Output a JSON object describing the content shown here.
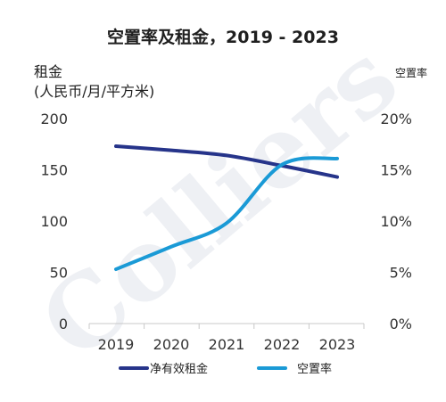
{
  "chart_data": {
    "type": "line",
    "title": "空置率及租金，2019 - 2023",
    "watermark": "Colliers",
    "categories": [
      "2019",
      "2020",
      "2021",
      "2022",
      "2023"
    ],
    "y_left": {
      "label_line1": "租金",
      "label_line2": "(人民币/月/平方米)",
      "ylim": [
        0,
        200
      ],
      "ticks": [
        "0",
        "50",
        "100",
        "150",
        "200"
      ]
    },
    "y_right": {
      "label": "空置率",
      "ylim": [
        0,
        0.2
      ],
      "ticks": [
        "0%",
        "5%",
        "10%",
        "15%",
        "20%"
      ]
    },
    "series": [
      {
        "name": "净有效租金",
        "axis": "left",
        "color": "#26348a",
        "values": [
          173,
          169,
          164,
          154,
          143
        ]
      },
      {
        "name": "空置率",
        "axis": "right",
        "color": "#1a9ad6",
        "values": [
          0.053,
          0.075,
          0.098,
          0.155,
          0.161
        ]
      }
    ],
    "grid": false,
    "legend_position": "bottom"
  }
}
